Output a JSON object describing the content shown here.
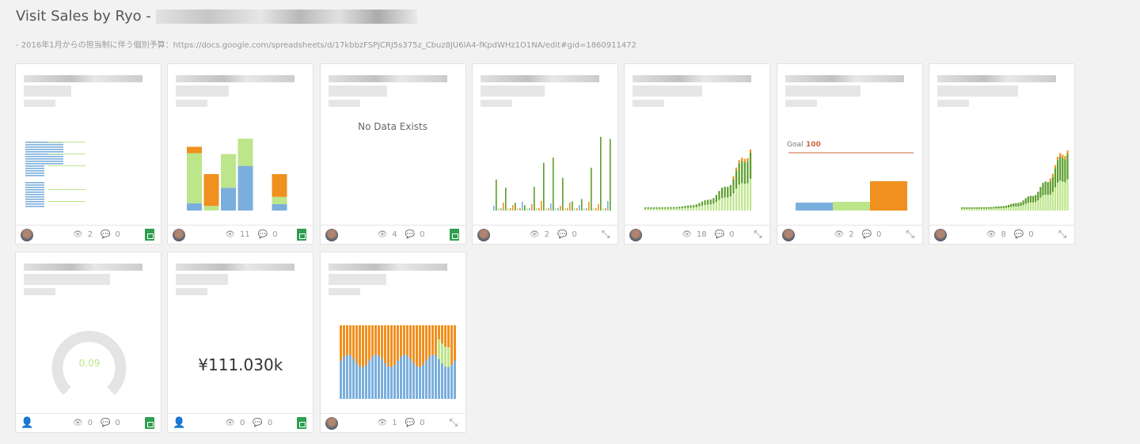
{
  "header": {
    "title": "Visit Sales by Ryo -",
    "description": "- 2016年1月からの担当制に伴う個別予算：https://docs.google.com/spreadsheets/d/17kbbzFSPjCRJ5s375z_Cbuz8JU6lA4-fKpdWHz1O1NA/edit#gid=1860911472"
  },
  "colors": {
    "blue": "#7aaedc",
    "green": "#bde58a",
    "dark_green": "#5a9e2a",
    "orange": "#f0901e",
    "goal": "#d0643c"
  },
  "cards": [
    {
      "type": "hbar",
      "views": "2",
      "comments": "0",
      "source": "sheets-icon",
      "avatar": "user"
    },
    {
      "type": "stacked",
      "views": "11",
      "comments": "0",
      "source": "sheets-icon",
      "avatar": "user",
      "data": [
        [
          8,
          55,
          7
        ],
        [
          0,
          5,
          35
        ],
        [
          25,
          37,
          0
        ],
        [
          49,
          30,
          0
        ],
        null,
        [
          7,
          8,
          25
        ]
      ]
    },
    {
      "type": "nodata",
      "text": "No Data Exists",
      "views": "4",
      "comments": "0",
      "source": "sheets-icon",
      "avatar": "user"
    },
    {
      "type": "grouped",
      "views": "2",
      "comments": "0",
      "source": "expand-icon",
      "avatar": "user2"
    },
    {
      "type": "growth",
      "views": "18",
      "comments": "0",
      "source": "expand-icon",
      "avatar": "user2"
    },
    {
      "type": "goal",
      "goal_label": "Goal",
      "goal_value": "100",
      "values": [
        10,
        11,
        37
      ],
      "views": "2",
      "comments": "0",
      "source": "expand-icon",
      "avatar": "user2"
    },
    {
      "type": "growth2",
      "views": "8",
      "comments": "0",
      "source": "expand-icon",
      "avatar": "user2"
    },
    {
      "type": "gauge",
      "value": "0.09",
      "views": "0",
      "comments": "0",
      "source": "sheets-icon",
      "avatar": "anon"
    },
    {
      "type": "number",
      "value": "¥111.030k",
      "views": "0",
      "comments": "0",
      "source": "sheets-icon",
      "avatar": "anon"
    },
    {
      "type": "percent",
      "views": "1",
      "comments": "0",
      "source": "expand-icon",
      "avatar": "user2"
    }
  ]
}
